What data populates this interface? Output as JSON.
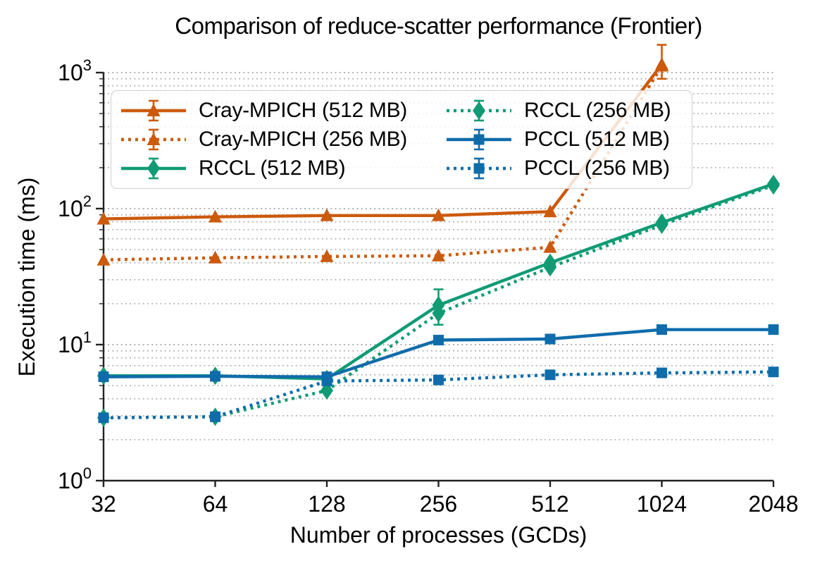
{
  "figure": {
    "title": "Comparison of reduce-scatter performance (Frontier)"
  },
  "chart_data": {
    "type": "line",
    "title": "Comparison of reduce-scatter performance (Frontier)",
    "xlabel": "Number of processes (GCDs)",
    "ylabel": "Execution time (ms)",
    "x_scale": "log2",
    "y_scale": "log10",
    "x": [
      32,
      64,
      128,
      256,
      512,
      1024,
      2048
    ],
    "x_tick_labels": [
      "32",
      "64",
      "128",
      "256",
      "512",
      "1024",
      "2048"
    ],
    "y_ticks": [
      {
        "base": "10",
        "exp": "0",
        "value": 1
      },
      {
        "base": "10",
        "exp": "1",
        "value": 10
      },
      {
        "base": "10",
        "exp": "2",
        "value": 100
      },
      {
        "base": "10",
        "exp": "3",
        "value": 1000
      }
    ],
    "ylim": [
      1,
      1000
    ],
    "grid": "horizontal dotted gray, major and minor (log decades)",
    "legend_position": "upper left, 2 columns, semi-transparent",
    "series": [
      {
        "name": "Cray-MPICH (512 MB)",
        "color": "#cc5a0d",
        "line": "solid",
        "marker": "triangle",
        "values": [
          84,
          87,
          89,
          89,
          95,
          1150,
          null
        ],
        "err_minus": [
          0,
          0,
          0,
          0,
          0,
          250,
          0
        ],
        "err_plus": [
          0,
          0,
          0,
          0,
          0,
          450,
          0
        ]
      },
      {
        "name": "Cray-MPICH (256 MB)",
        "color": "#cc5a0d",
        "line": "dotted",
        "marker": "triangle",
        "values": [
          42,
          43.5,
          44.5,
          45,
          52,
          1120,
          null
        ],
        "err_minus": [
          0,
          0,
          0,
          0,
          0,
          0,
          0
        ],
        "err_plus": [
          0,
          0,
          0,
          0,
          0,
          0,
          0
        ]
      },
      {
        "name": "RCCL (512 MB)",
        "color": "#109b74",
        "line": "solid",
        "marker": "diamond",
        "values": [
          5.9,
          5.9,
          5.6,
          19.5,
          40,
          79,
          152
        ],
        "err_minus": [
          0,
          0,
          0,
          5.5,
          0,
          0,
          0
        ],
        "err_plus": [
          0,
          0,
          0,
          6.0,
          0,
          0,
          0
        ]
      },
      {
        "name": "RCCL (256 MB)",
        "color": "#109b74",
        "line": "dotted",
        "marker": "diamond",
        "values": [
          2.9,
          2.95,
          4.6,
          17,
          37,
          76,
          148
        ],
        "err_minus": [
          0,
          0,
          0,
          0,
          0,
          0,
          0
        ],
        "err_plus": [
          0,
          0,
          0,
          0,
          0,
          0,
          0
        ]
      },
      {
        "name": "PCCL (512 MB)",
        "color": "#0f6cab",
        "line": "solid",
        "marker": "square",
        "values": [
          5.8,
          5.85,
          5.8,
          10.8,
          11.0,
          12.9,
          12.9
        ],
        "err_minus": [
          0,
          0,
          0,
          0,
          0,
          0,
          0
        ],
        "err_plus": [
          0,
          0,
          0,
          0,
          0,
          0,
          0
        ]
      },
      {
        "name": "PCCL (256 MB)",
        "color": "#0f6cab",
        "line": "dotted",
        "marker": "square",
        "values": [
          2.9,
          2.95,
          5.4,
          5.5,
          6.0,
          6.2,
          6.3
        ],
        "err_minus": [
          0,
          0,
          0,
          0,
          0,
          0,
          0
        ],
        "err_plus": [
          0,
          0,
          0,
          0,
          0,
          0,
          0
        ]
      }
    ],
    "style": {
      "grid_color": "#b0b0b0",
      "major_grid_color": "#9d9d9d",
      "axis_color": "#222222"
    }
  }
}
